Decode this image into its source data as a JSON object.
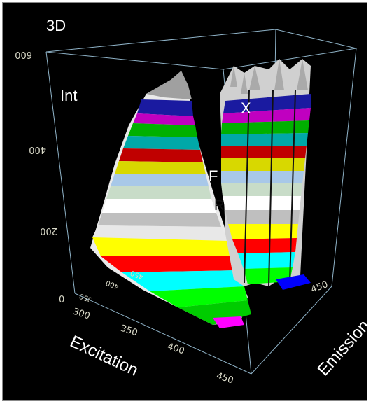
{
  "chart_data": {
    "type": "surface3d",
    "corner_label": "3D",
    "z_axis_label": "Int",
    "x_axis_label": "Excitation",
    "y_axis_label": "Emission",
    "annotations": [
      "X",
      "F",
      "R"
    ],
    "z_ticks": [
      "0",
      "200",
      "400",
      "600"
    ],
    "x_ticks": [
      "300",
      "350",
      "400",
      "450"
    ],
    "y_ticks_near": [
      "350",
      "400",
      "450"
    ],
    "y_ticks_far": [
      "450"
    ],
    "zlim": [
      0,
      600
    ],
    "xlim": [
      290,
      460
    ],
    "ylim": [
      300,
      480
    ],
    "grid": false,
    "legend": "none",
    "colormap": [
      "#ff00ff",
      "#00ff00",
      "#00ffff",
      "#ff0000",
      "#ffff00",
      "#c0c0c0",
      "#ffffff",
      "#d0e8d0",
      "#a0c8f0",
      "#a0a0a0",
      "#ffff00",
      "#ff0000",
      "#00ffff",
      "#00ff00",
      "#ff00ff",
      "#0000ff",
      "#e0e0e0"
    ],
    "features": [
      {
        "label": "F",
        "peak_intensity": 590,
        "excitation": 330
      },
      {
        "label": "X",
        "peak_count": 5,
        "peak_intensity": 600,
        "excitation": 440
      }
    ]
  }
}
